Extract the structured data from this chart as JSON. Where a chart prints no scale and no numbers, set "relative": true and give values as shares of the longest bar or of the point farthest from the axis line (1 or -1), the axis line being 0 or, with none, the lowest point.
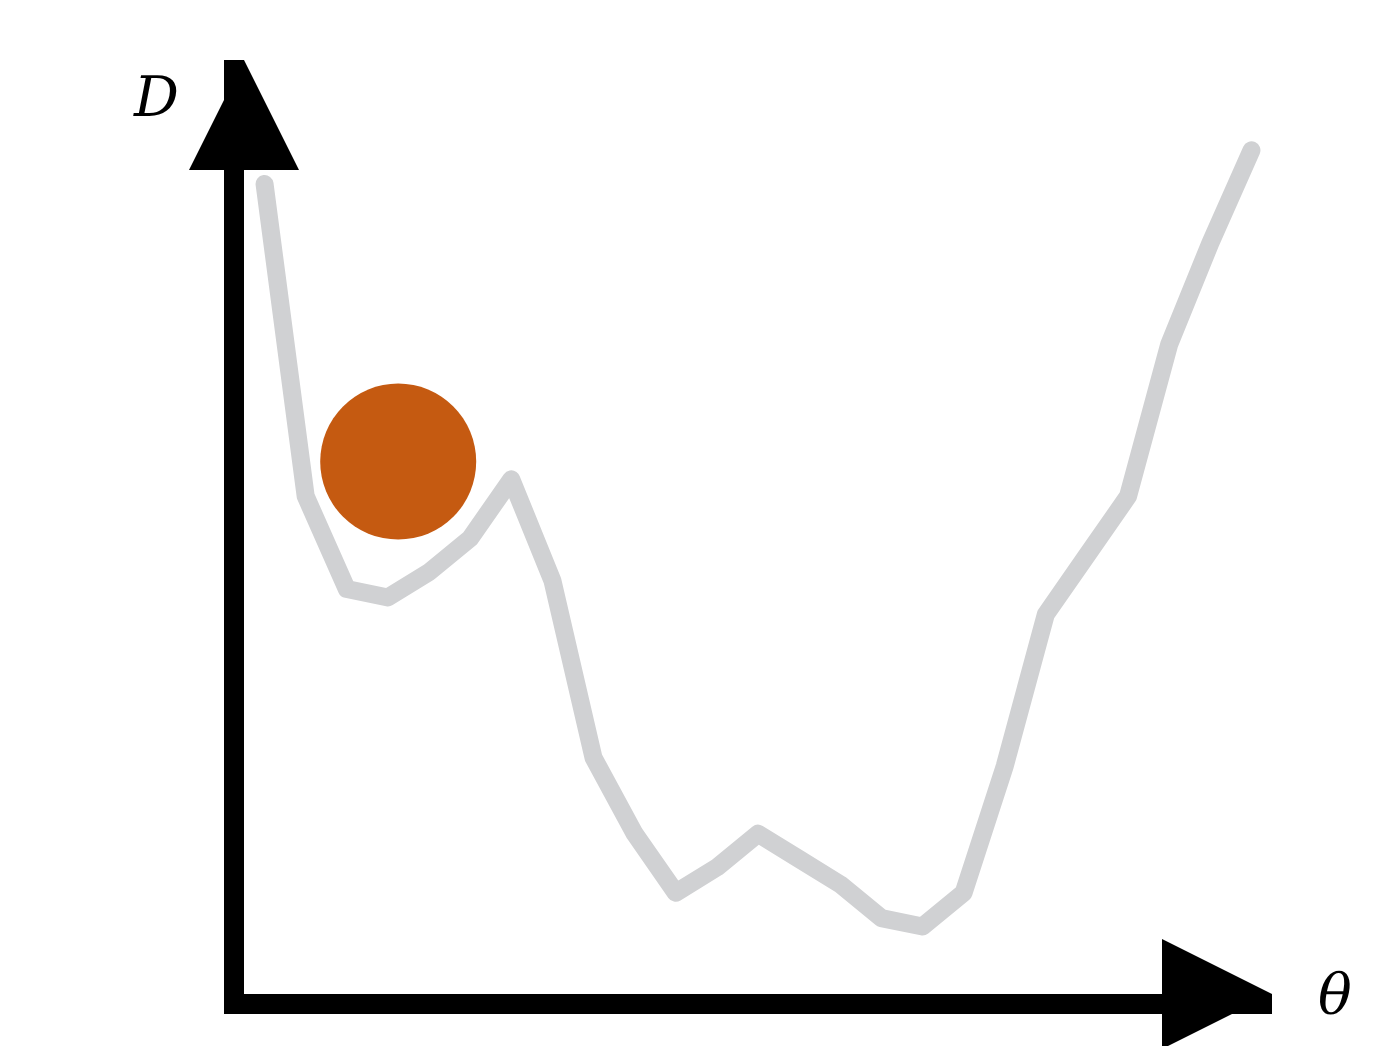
{
  "chart_data": {
    "type": "line",
    "relative": true,
    "xlabel": "θ",
    "ylabel": "D",
    "categories": [
      null,
      null,
      null,
      null,
      null,
      null,
      null,
      null,
      null,
      null,
      null,
      null,
      null,
      null,
      null,
      null,
      null,
      null,
      null,
      null,
      null,
      null,
      null,
      null,
      null
    ],
    "series": [
      {
        "color": "#d0d1d3",
        "values": [
          0.96,
          0.59,
          0.48,
          0.47,
          0.5,
          0.54,
          0.61,
          0.49,
          0.28,
          0.19,
          0.12,
          0.15,
          0.19,
          0.16,
          0.13,
          0.09,
          0.08,
          0.12,
          0.27,
          0.45,
          0.52,
          0.59,
          0.77,
          0.89,
          1.0
        ]
      }
    ]
  }
}
